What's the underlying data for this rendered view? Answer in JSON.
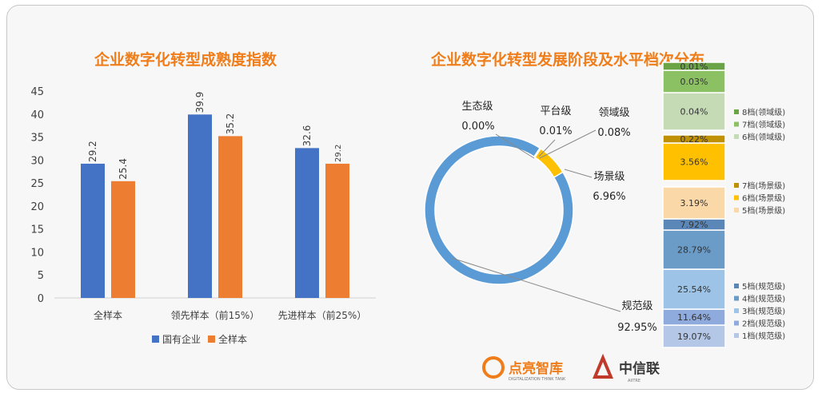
{
  "colors": {
    "title": "#ef7d1a",
    "soe": "#4472c4",
    "all": "#ed7d31",
    "donut_gauifan": "#5b9bd5",
    "donut_changjing": "#ffc000",
    "donut_other": "#70ad47"
  },
  "chart_data": [
    {
      "type": "bar",
      "title": "企业数字化转型成熟度指数",
      "categories": [
        "全样本",
        "领先样本（前15%）",
        "先进样本（前25%）"
      ],
      "series": [
        {
          "name": "国有企业",
          "values": [
            29.2,
            39.9,
            32.6
          ],
          "labels": [
            "29.2",
            "39.9",
            "32.6"
          ]
        },
        {
          "name": "全样本",
          "values": [
            25.4,
            35.2,
            29.2
          ],
          "labels": [
            "25.4",
            "35.2",
            "29.2"
          ]
        }
      ],
      "ylim": [
        0,
        45
      ],
      "yticks": [
        0,
        5,
        10,
        15,
        20,
        25,
        30,
        35,
        40,
        45
      ],
      "grid": false,
      "legend": "bottom"
    },
    {
      "type": "pie",
      "title": "企业数字化转型发展阶段及水平档次分布",
      "slices": [
        {
          "name": "规范级",
          "value": 92.95,
          "label": "92.95%",
          "color": "#5b9bd5"
        },
        {
          "name": "场景级",
          "value": 6.96,
          "label": "6.96%",
          "color": "#ffc000"
        },
        {
          "name": "领域级",
          "value": 0.08,
          "label": "0.08%",
          "color": "#70ad47"
        },
        {
          "name": "平台级",
          "value": 0.01,
          "label": "0.01%",
          "color": "#548235"
        },
        {
          "name": "生态级",
          "value": 0.0,
          "label": "0.00%",
          "color": "#375623"
        }
      ]
    },
    {
      "type": "bar",
      "subtype": "stacked",
      "segments": [
        {
          "name": "1档(规范级)",
          "value": 19.07,
          "label": "19.07%",
          "color": "#b4c7e7"
        },
        {
          "name": "2档(规范级)",
          "value": 11.64,
          "label": "11.64%",
          "color": "#8faadc"
        },
        {
          "name": "3档(规范级)",
          "value": 25.54,
          "label": "25.54%",
          "color": "#9dc3e6"
        },
        {
          "name": "4档(规范级)",
          "value": 28.79,
          "label": "28.79%",
          "color": "#6b9bc7"
        },
        {
          "name": "5档(规范级)",
          "value": 7.92,
          "label": "7.92%",
          "color": "#5a87b8"
        },
        {
          "name": "5档(场景级)",
          "value": 3.19,
          "label": "3.19%",
          "color": "#fbd8a8"
        },
        {
          "name": "6档(场景级)",
          "value": 3.56,
          "label": "3.56%",
          "color": "#ffc000"
        },
        {
          "name": "7档(场景级)",
          "value": 0.22,
          "label": "0.22%",
          "color": "#bf9000"
        },
        {
          "name": "6档(领域级)",
          "value": 0.04,
          "label": "0.04%",
          "color": "#c5dbb6"
        },
        {
          "name": "7档(领域级)",
          "value": 0.03,
          "label": "0.03%",
          "color": "#8bc163"
        },
        {
          "name": "8档(领域级)",
          "value": 0.01,
          "label": "0.01%",
          "color": "#6aa447"
        }
      ],
      "legend_groups": [
        [
          "8档(领域级)",
          "7档(领域级)",
          "6档(领域级)"
        ],
        [
          "7档(场景级)",
          "6档(场景级)",
          "5档(场景级)"
        ],
        [
          "5档(规范级)",
          "4档(规范级)",
          "3档(规范级)",
          "2档(规范级)",
          "1档(规范级)"
        ]
      ]
    }
  ],
  "brands": [
    {
      "name": "点亮智库",
      "sub": "DIGITALIZATION THINK TANK",
      "color": "#ef7d1a"
    },
    {
      "name": "中信联",
      "sub": "AIITRE",
      "color": "#c0392b"
    }
  ]
}
